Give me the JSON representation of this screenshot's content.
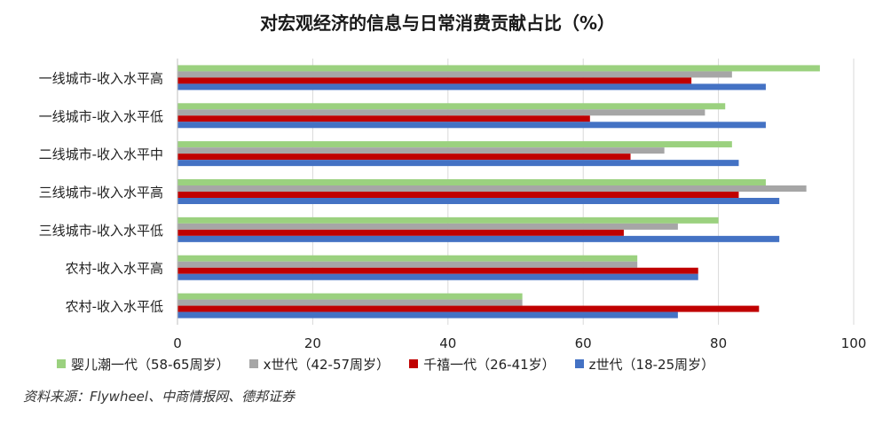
{
  "chart_data": {
    "type": "bar",
    "orientation": "horizontal",
    "title": "对宏观经济的信息与日常消费贡献占比（%）",
    "categories": [
      "一线城市-收入水平高",
      "一线城市-收入水平低",
      "二线城市-收入水平中",
      "三线城市-收入水平高",
      "三线城市-收入水平低",
      "农村-收入水平高",
      "农村-收入水平低"
    ],
    "series": [
      {
        "name": "婴儿潮一代（58-65周岁）",
        "color": "#9bd17f",
        "values": [
          95,
          81,
          82,
          87,
          80,
          68,
          51
        ]
      },
      {
        "name": "x世代（42-57周岁）",
        "color": "#a6a6a6",
        "values": [
          82,
          78,
          72,
          93,
          74,
          68,
          51
        ]
      },
      {
        "name": "千禧一代（26-41岁）",
        "color": "#c00000",
        "values": [
          76,
          61,
          67,
          83,
          66,
          77,
          86
        ]
      },
      {
        "name": "z世代（18-25周岁）",
        "color": "#4472c4",
        "values": [
          87,
          87,
          83,
          89,
          89,
          77,
          74
        ]
      }
    ],
    "xlim": [
      0,
      100
    ],
    "xticks": [
      0,
      20,
      40,
      60,
      80,
      100
    ],
    "grid": true,
    "legend_position": "bottom"
  },
  "source_note": "资料来源：Flywheel、中商情报网、德邦证券"
}
